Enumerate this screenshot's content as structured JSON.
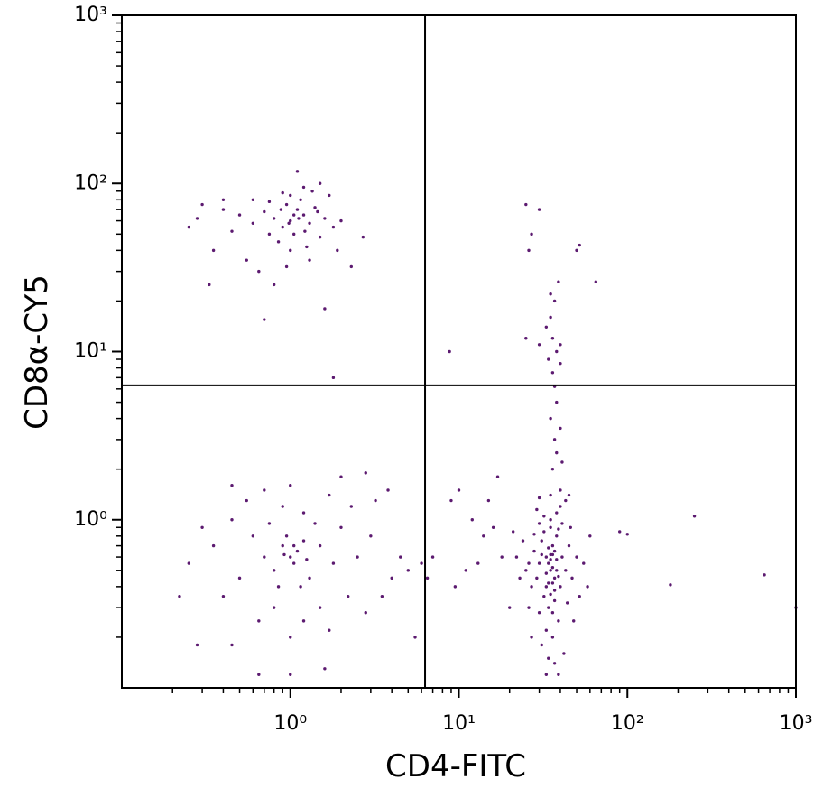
{
  "chart_data": {
    "type": "scatter",
    "x_label": "CD4-FITC",
    "y_label": "CD8α-CY5",
    "log_x": true,
    "log_y": true,
    "color": "#5c1a70",
    "xlim": [
      0.1,
      1000
    ],
    "ylim": [
      0.1,
      1000
    ],
    "xticks": [
      {
        "value": 1,
        "label": "10⁰"
      },
      {
        "value": 10,
        "label": "10¹"
      },
      {
        "value": 100,
        "label": "10²"
      },
      {
        "value": 1000,
        "label": "10³"
      }
    ],
    "yticks": [
      {
        "value": 1,
        "label": "10⁰"
      },
      {
        "value": 10,
        "label": "10¹"
      },
      {
        "value": 100,
        "label": "10²"
      },
      {
        "value": 1000,
        "label": "10³"
      }
    ],
    "xminorticks": [
      0.2,
      0.3,
      0.4,
      0.5,
      0.6,
      0.7,
      0.8,
      0.9,
      2,
      3,
      4,
      5,
      6,
      7,
      8,
      9,
      20,
      30,
      40,
      50,
      60,
      70,
      80,
      90,
      200,
      300,
      400,
      500,
      600,
      700,
      800,
      900
    ],
    "yminorticks": [
      0.2,
      0.3,
      0.4,
      0.5,
      0.6,
      0.7,
      0.8,
      0.9,
      2,
      3,
      4,
      5,
      6,
      7,
      8,
      9,
      20,
      30,
      40,
      50,
      60,
      70,
      80,
      90,
      200,
      300,
      400,
      500,
      600,
      700,
      800,
      900
    ],
    "quadrant_gate": {
      "x": 6.3,
      "y": 6.3
    },
    "x": [
      1.0,
      0.9,
      1.1,
      1.2,
      0.8,
      1.3,
      0.95,
      1.05,
      0.7,
      1.4,
      0.6,
      1.5,
      0.85,
      1.15,
      1.25,
      0.75,
      1.6,
      0.5,
      1.8,
      0.4,
      0.3,
      0.25,
      0.35,
      0.45,
      0.55,
      1.7,
      1.2,
      1.1,
      0.9,
      1.0,
      0.65,
      0.8,
      1.3,
      1.9,
      2.0,
      2.7,
      2.3,
      0.33,
      0.28,
      1.5,
      1.35,
      0.95,
      0.7,
      1.6,
      1.8,
      1.05,
      0.88,
      1.22,
      0.98,
      1.12,
      0.6,
      0.4,
      1.45,
      0.75,
      1.0,
      1.0,
      0.9,
      1.1,
      0.8,
      1.2,
      1.05,
      0.95,
      1.3,
      0.7,
      1.5,
      0.6,
      1.8,
      0.5,
      2.0,
      0.45,
      2.5,
      0.4,
      3.0,
      0.35,
      0.3,
      0.25,
      0.22,
      0.28,
      0.45,
      0.65,
      0.8,
      1.0,
      1.2,
      1.5,
      1.7,
      2.2,
      2.8,
      3.5,
      4.0,
      3.2,
      2.3,
      1.7,
      1.2,
      0.9,
      0.7,
      0.55,
      0.45,
      1.0,
      2.0,
      2.8,
      0.65,
      1.0,
      1.6,
      0.85,
      1.15,
      1.4,
      0.75,
      5.0,
      5.5,
      6.0,
      3.8,
      4.5,
      1.05,
      0.92,
      1.25,
      35,
      33,
      37,
      30,
      40,
      36,
      32,
      38,
      34,
      41,
      29,
      43,
      35,
      31,
      39,
      36,
      33,
      28,
      45,
      27,
      47,
      26,
      50,
      25,
      24,
      52,
      23,
      55,
      35,
      38,
      32,
      40,
      30,
      43,
      29,
      46,
      34,
      37,
      31,
      42,
      39,
      33,
      36,
      34,
      37,
      35,
      36,
      33,
      38,
      34,
      37,
      32,
      39,
      41,
      28,
      44,
      30,
      26,
      48,
      27,
      60,
      58,
      22,
      21,
      35,
      40,
      30,
      45,
      37,
      36,
      35,
      38,
      34,
      36,
      33,
      39,
      31,
      35,
      36,
      38,
      37,
      35,
      38,
      37,
      36,
      34,
      38,
      40,
      36,
      33,
      35,
      37,
      35,
      40,
      30,
      25,
      39,
      27,
      30,
      25,
      50,
      52,
      65,
      26,
      40,
      41,
      8.8,
      9,
      10,
      12,
      14,
      16,
      18,
      13,
      11,
      9.5,
      7,
      6.5,
      15,
      17,
      20,
      250,
      650,
      180,
      100,
      90,
      1000
    ],
    "values": [
      60,
      55,
      70,
      65,
      62,
      58,
      75,
      50,
      68,
      72,
      58,
      48,
      45,
      80,
      42,
      78,
      62,
      65,
      55,
      70,
      75,
      55,
      40,
      52,
      35,
      85,
      95,
      118,
      88,
      40,
      30,
      25,
      35,
      40,
      60,
      48,
      32,
      25,
      62,
      100,
      90,
      32,
      15.5,
      18,
      7,
      65,
      70,
      52,
      58,
      62,
      80,
      80,
      68,
      50,
      85,
      0.6,
      0.7,
      0.65,
      0.5,
      0.75,
      0.55,
      0.8,
      0.45,
      0.6,
      0.7,
      0.8,
      0.55,
      0.45,
      0.9,
      1.0,
      0.6,
      0.35,
      0.8,
      0.7,
      0.9,
      0.55,
      0.35,
      0.18,
      0.18,
      0.25,
      0.3,
      0.2,
      0.25,
      0.3,
      0.22,
      0.35,
      0.28,
      0.35,
      0.45,
      1.3,
      1.2,
      1.4,
      1.1,
      1.2,
      1.5,
      1.3,
      1.6,
      1.6,
      1.8,
      1.9,
      0.12,
      0.12,
      0.13,
      0.4,
      0.4,
      0.95,
      0.95,
      0.5,
      0.2,
      0.55,
      1.5,
      0.6,
      0.7,
      0.62,
      0.58,
      0.5,
      0.6,
      0.45,
      0.55,
      0.4,
      0.7,
      0.35,
      0.8,
      0.3,
      0.6,
      0.45,
      0.5,
      0.9,
      0.75,
      0.25,
      0.2,
      0.22,
      0.65,
      0.7,
      0.4,
      0.45,
      0.55,
      0.6,
      0.5,
      0.75,
      0.35,
      0.45,
      0.55,
      1.0,
      1.1,
      1.05,
      1.2,
      0.95,
      1.3,
      1.15,
      0.9,
      0.15,
      0.14,
      0.18,
      0.16,
      0.12,
      0.12,
      0.28,
      0.42,
      0.38,
      0.62,
      0.52,
      0.48,
      0.58,
      0.68,
      0.65,
      0.85,
      0.88,
      0.95,
      0.82,
      0.32,
      0.28,
      0.3,
      0.25,
      0.2,
      0.8,
      0.4,
      0.6,
      0.85,
      1.4,
      1.5,
      1.35,
      1.4,
      0.33,
      0.42,
      0.58,
      0.5,
      0.55,
      0.62,
      0.4,
      0.46,
      0.62,
      0.36,
      2,
      2.5,
      3,
      4,
      5,
      6.2,
      7.5,
      9,
      10,
      11,
      12,
      14,
      16,
      20,
      22,
      8.5,
      11,
      12,
      26,
      50,
      70,
      75,
      40,
      43,
      26,
      40,
      3.5,
      2.2,
      10,
      1.3,
      1.5,
      1.0,
      0.8,
      0.9,
      0.6,
      0.55,
      0.5,
      0.4,
      0.6,
      0.45,
      1.3,
      1.8,
      0.3,
      1.05,
      0.47,
      0.41,
      0.82,
      0.85,
      0.3
    ]
  }
}
